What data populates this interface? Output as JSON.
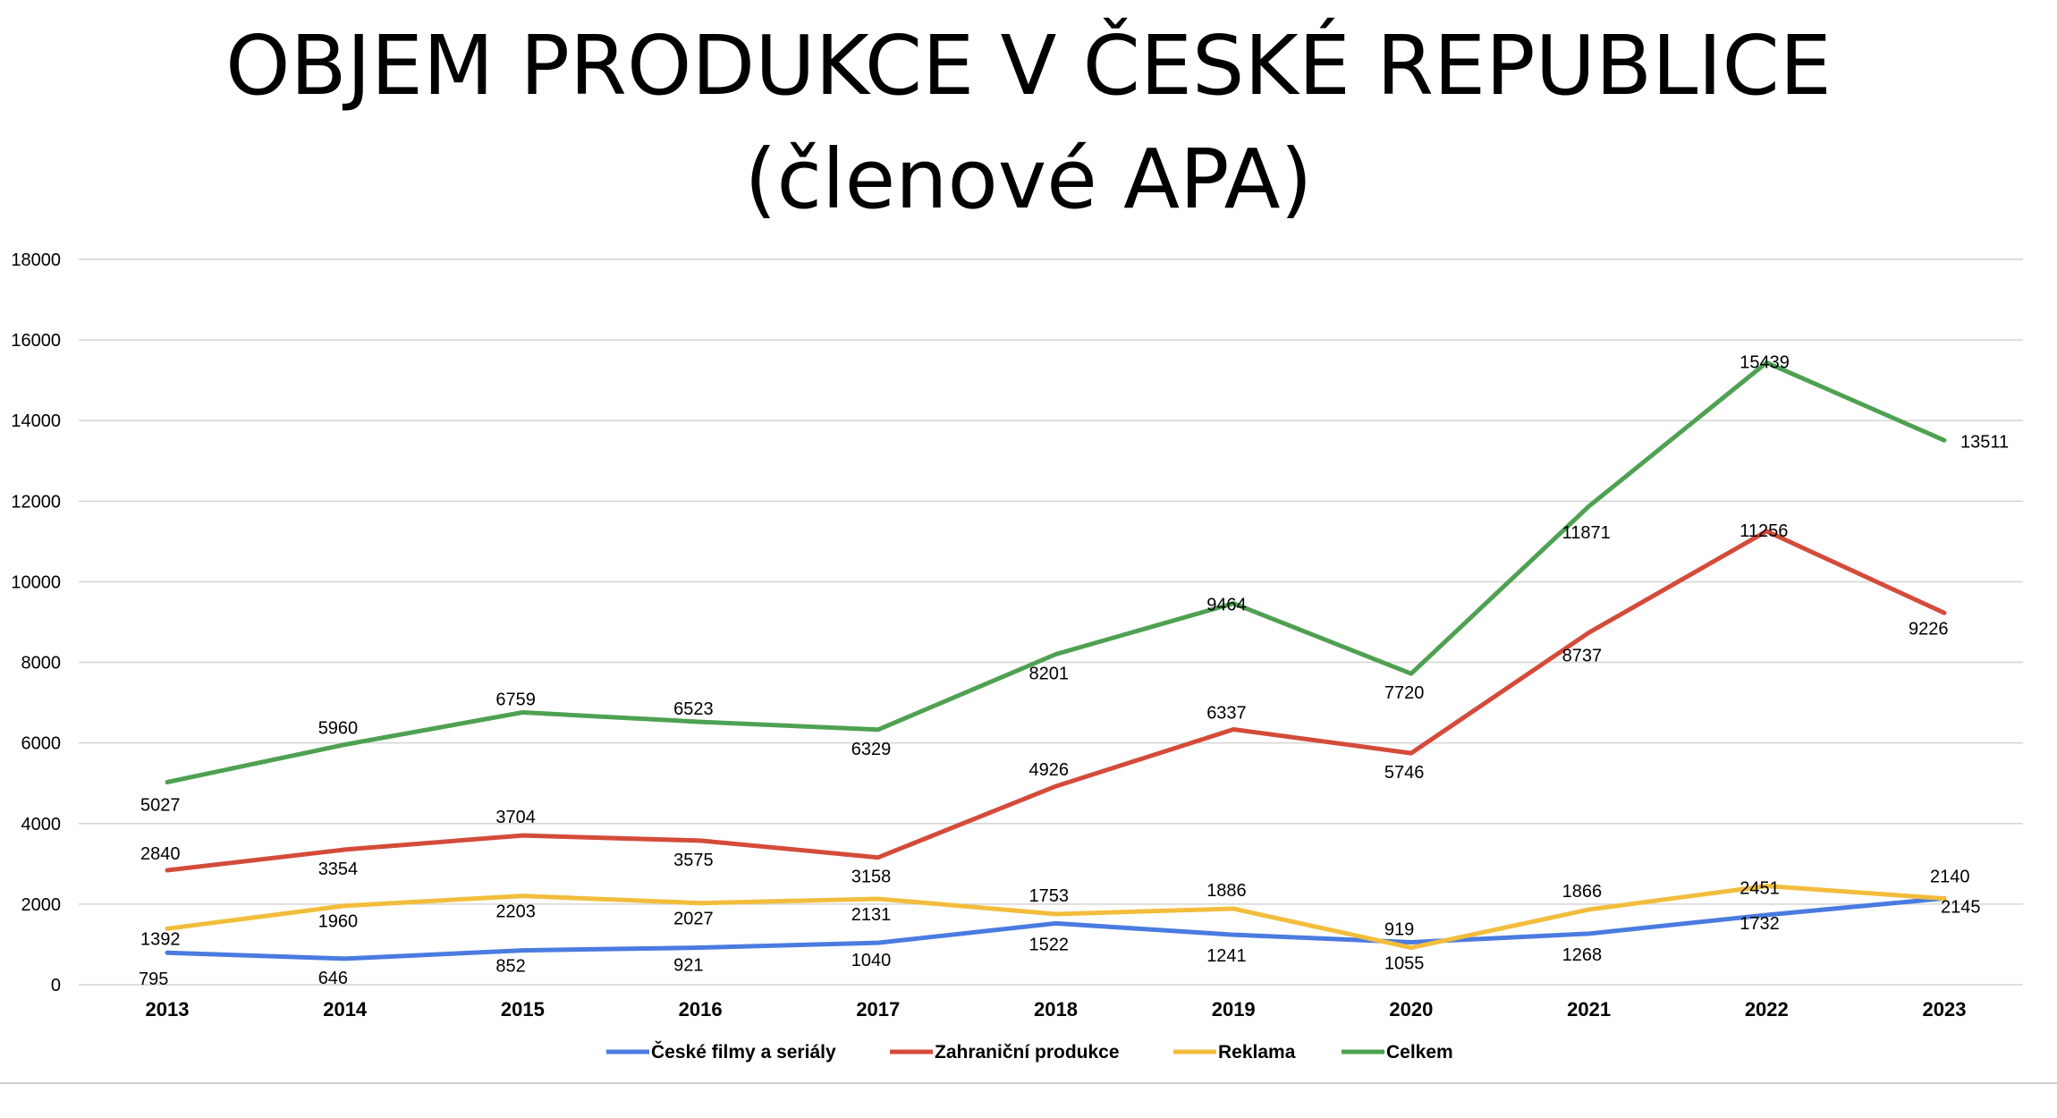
{
  "chart_data": {
    "type": "line",
    "title": "OBJEM PRODUKCE V ČESKÉ REPUBLICE",
    "subtitle": "(členové APA)",
    "xlabel": "",
    "ylabel": "",
    "categories": [
      "2013",
      "2014",
      "2015",
      "2016",
      "2017",
      "2018",
      "2019",
      "2020",
      "2021",
      "2022",
      "2023"
    ],
    "ylim": [
      0,
      18000
    ],
    "yticks": [
      0,
      2000,
      4000,
      6000,
      8000,
      10000,
      12000,
      14000,
      16000,
      18000
    ],
    "grid": true,
    "legend_position": "bottom",
    "data_labels": true,
    "series": [
      {
        "name": "České filmy a seriály",
        "color": "#4A7BE0",
        "values": [
          795,
          646,
          852,
          921,
          1040,
          1522,
          1241,
          1055,
          1268,
          1732,
          2145
        ]
      },
      {
        "name": "Zahraniční produkce",
        "color": "#D44B3A",
        "values": [
          2840,
          3354,
          3704,
          3575,
          3158,
          4926,
          6337,
          5746,
          8737,
          11256,
          9226
        ]
      },
      {
        "name": "Reklama",
        "color": "#F2BD3C",
        "values": [
          1392,
          1960,
          2203,
          2027,
          2131,
          1753,
          1886,
          919,
          1866,
          2451,
          2140
        ]
      },
      {
        "name": "Celkem",
        "color": "#4FA152",
        "values": [
          5027,
          5960,
          6759,
          6523,
          6329,
          8201,
          9464,
          7720,
          11871,
          15439,
          13511
        ]
      }
    ]
  }
}
